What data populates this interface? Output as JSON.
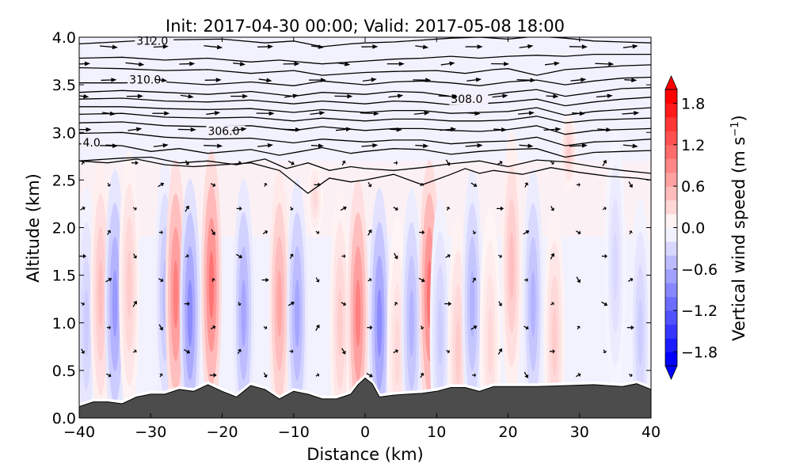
{
  "chart_data": {
    "type": "heatmap",
    "title": "Init: 2017-04-30 00:00; Valid: 2017-05-08 18:00",
    "xlabel": "Distance (km)",
    "ylabel": "Altitude (km)",
    "xlim": [
      -40,
      40
    ],
    "ylim": [
      0.0,
      4.0
    ],
    "xticks": [
      "−40",
      "−30",
      "−20",
      "−10",
      "0",
      "10",
      "20",
      "30",
      "40"
    ],
    "xtick_values": [
      -40,
      -30,
      -20,
      -10,
      0,
      10,
      20,
      30,
      40
    ],
    "yticks": [
      "0.0",
      "0.5",
      "1.0",
      "1.5",
      "2.0",
      "2.5",
      "3.0",
      "3.5",
      "4.0"
    ],
    "ytick_values": [
      0.0,
      0.5,
      1.0,
      1.5,
      2.0,
      2.5,
      3.0,
      3.5,
      4.0
    ],
    "colorbar": {
      "label": "Vertical wind speed (m s",
      "label_sup": "−1",
      "label_close": ")",
      "range": [
        -2.0,
        2.0
      ],
      "extend": "both",
      "ticks": [
        "−1.8",
        "−1.2",
        "−0.6",
        "0.0",
        "0.6",
        "1.2",
        "1.8"
      ],
      "tick_values": [
        -1.8,
        -1.2,
        -0.6,
        0.0,
        0.6,
        1.2,
        1.8
      ],
      "low_color": "#0000ff",
      "mid_color": "#ffffff",
      "high_color": "#ff0000"
    },
    "contour_labels": [
      {
        "text": "312.0",
        "x": -32,
        "y": 3.93
      },
      {
        "text": "310.0",
        "x": -33,
        "y": 3.52
      },
      {
        "text": "308.0",
        "x": 12,
        "y": 3.32
      },
      {
        "text": "306.0",
        "x": -22,
        "y": 2.98
      },
      {
        "text": "4.0",
        "x": -39.5,
        "y": 2.86
      }
    ],
    "isentropes": [
      {
        "x": [
          -40,
          -30,
          -20,
          -14,
          -10,
          -6,
          -2,
          0,
          4,
          8,
          12,
          16,
          20,
          24,
          28,
          32,
          36,
          40
        ],
        "y": [
          3.93,
          3.97,
          3.98,
          3.94,
          3.96,
          3.9,
          3.93,
          3.94,
          3.95,
          3.97,
          3.99,
          4.0,
          3.98,
          4.01,
          3.99,
          3.96,
          3.95,
          3.94
        ]
      },
      {
        "x": [
          -40,
          -34,
          -28,
          -22,
          -16,
          -12,
          -6,
          0,
          4,
          8,
          12,
          16,
          20,
          24,
          28,
          32,
          36,
          40
        ],
        "y": [
          3.78,
          3.79,
          3.76,
          3.78,
          3.74,
          3.76,
          3.72,
          3.75,
          3.77,
          3.78,
          3.8,
          3.78,
          3.8,
          3.81,
          3.8,
          3.82,
          3.82,
          3.82
        ]
      },
      {
        "x": [
          -40,
          -34,
          -28,
          -22,
          -16,
          -10,
          -6,
          0,
          4,
          10,
          14,
          18,
          20,
          24,
          28,
          32,
          36,
          40
        ],
        "y": [
          3.68,
          3.67,
          3.65,
          3.66,
          3.62,
          3.65,
          3.6,
          3.63,
          3.64,
          3.65,
          3.62,
          3.66,
          3.67,
          3.6,
          3.66,
          3.68,
          3.7,
          3.71
        ]
      },
      {
        "x": [
          -40,
          -34,
          -28,
          -22,
          -16,
          -10,
          -6,
          0,
          4,
          8,
          12,
          16,
          20,
          24,
          28,
          32,
          36,
          40
        ],
        "y": [
          3.52,
          3.52,
          3.53,
          3.5,
          3.53,
          3.49,
          3.54,
          3.5,
          3.53,
          3.54,
          3.52,
          3.49,
          3.53,
          3.55,
          3.5,
          3.54,
          3.57,
          3.58
        ]
      },
      {
        "x": [
          -40,
          -34,
          -28,
          -22,
          -16,
          -10,
          -6,
          0,
          4,
          8,
          12,
          16,
          20,
          24,
          28,
          32,
          36,
          40
        ],
        "y": [
          3.42,
          3.44,
          3.42,
          3.4,
          3.43,
          3.38,
          3.42,
          3.4,
          3.43,
          3.42,
          3.38,
          3.38,
          3.42,
          3.45,
          3.38,
          3.42,
          3.46,
          3.47
        ]
      },
      {
        "x": [
          -40,
          -34,
          -28,
          -22,
          -16,
          -10,
          -6,
          0,
          4,
          8,
          12,
          16,
          20,
          24,
          28,
          32,
          36,
          40
        ],
        "y": [
          3.35,
          3.36,
          3.33,
          3.32,
          3.34,
          3.3,
          3.33,
          3.3,
          3.33,
          3.32,
          3.29,
          3.3,
          3.32,
          3.35,
          3.28,
          3.32,
          3.35,
          3.37
        ]
      },
      {
        "x": [
          -40,
          -34,
          -28,
          -22,
          -16,
          -10,
          -6,
          0,
          4,
          8,
          12,
          16,
          20,
          24,
          28,
          32,
          36,
          40
        ],
        "y": [
          3.27,
          3.27,
          3.25,
          3.24,
          3.25,
          3.21,
          3.24,
          3.21,
          3.23,
          3.23,
          3.2,
          3.21,
          3.22,
          3.26,
          3.18,
          3.22,
          3.24,
          3.26
        ]
      },
      {
        "x": [
          -40,
          -34,
          -28,
          -22,
          -16,
          -10,
          -6,
          0,
          4,
          8,
          12,
          16,
          20,
          24,
          28,
          32,
          36,
          40
        ],
        "y": [
          3.19,
          3.2,
          3.16,
          3.15,
          3.16,
          3.12,
          3.15,
          3.12,
          3.14,
          3.14,
          3.12,
          3.12,
          3.13,
          3.17,
          3.1,
          3.13,
          3.14,
          3.15
        ]
      },
      {
        "x": [
          -40,
          -34,
          -28,
          -22,
          -16,
          -10,
          -6,
          0,
          4,
          8,
          12,
          16,
          20,
          24,
          28,
          32,
          36,
          40
        ],
        "y": [
          3.1,
          3.11,
          3.07,
          3.06,
          3.07,
          3.02,
          3.06,
          3.02,
          3.04,
          3.04,
          3.02,
          3.01,
          3.03,
          3.07,
          2.98,
          3.02,
          3.03,
          3.04
        ]
      },
      {
        "x": [
          -40,
          -34,
          -28,
          -22,
          -16,
          -10,
          -6,
          0,
          4,
          8,
          12,
          16,
          20,
          24,
          28,
          32,
          36,
          40
        ],
        "y": [
          2.99,
          3.0,
          2.95,
          2.93,
          2.94,
          2.89,
          2.93,
          2.9,
          2.92,
          2.92,
          2.88,
          2.9,
          2.91,
          2.95,
          2.86,
          2.9,
          2.91,
          2.93
        ]
      },
      {
        "x": [
          -40,
          -34,
          -30,
          -26,
          -22,
          -16,
          -12,
          -9,
          -6,
          -2,
          0,
          4,
          8,
          12,
          16,
          20,
          24,
          28,
          32,
          36,
          40
        ],
        "y": [
          2.88,
          2.86,
          2.8,
          2.83,
          2.78,
          2.82,
          2.76,
          2.8,
          2.84,
          2.78,
          2.8,
          2.83,
          2.82,
          2.77,
          2.8,
          2.82,
          2.83,
          2.74,
          2.79,
          2.8,
          2.81
        ]
      },
      {
        "x": [
          -40,
          -34,
          -30,
          -26,
          -22,
          -18,
          -14,
          -11,
          -8,
          -5,
          -2,
          0,
          4,
          8,
          12,
          16,
          20,
          24,
          28,
          32,
          36,
          40
        ],
        "y": [
          2.7,
          2.73,
          2.74,
          2.68,
          2.7,
          2.66,
          2.72,
          2.62,
          2.68,
          2.6,
          2.64,
          2.62,
          2.6,
          2.63,
          2.67,
          2.7,
          2.64,
          2.71,
          2.69,
          2.64,
          2.6,
          2.57
        ]
      },
      {
        "x": [
          -40,
          -36,
          -32,
          -28,
          -24,
          -20,
          -16,
          -12,
          -10,
          -8,
          -5,
          -2,
          0,
          4,
          8,
          12,
          14,
          16,
          18,
          22,
          26,
          30,
          34,
          38,
          40
        ],
        "y": [
          2.7,
          2.68,
          2.72,
          2.66,
          2.64,
          2.66,
          2.68,
          2.6,
          2.48,
          2.36,
          2.52,
          2.48,
          2.5,
          2.56,
          2.45,
          2.56,
          2.62,
          2.57,
          2.6,
          2.56,
          2.63,
          2.58,
          2.54,
          2.52,
          2.5
        ]
      }
    ],
    "terrain": {
      "color": "#4c4c4c",
      "x": [
        -40,
        -38,
        -36,
        -34,
        -32,
        -30,
        -28,
        -26,
        -24,
        -22,
        -20,
        -18,
        -16,
        -14,
        -12,
        -10,
        -8,
        -6,
        -4,
        -2,
        -1,
        0,
        1,
        2,
        4,
        6,
        8,
        10,
        12,
        14,
        16,
        18,
        20,
        24,
        28,
        32,
        36,
        38,
        40
      ],
      "y": [
        0.12,
        0.17,
        0.17,
        0.15,
        0.22,
        0.25,
        0.25,
        0.3,
        0.28,
        0.35,
        0.28,
        0.22,
        0.34,
        0.3,
        0.2,
        0.28,
        0.25,
        0.2,
        0.2,
        0.25,
        0.35,
        0.42,
        0.36,
        0.22,
        0.24,
        0.25,
        0.26,
        0.28,
        0.32,
        0.32,
        0.28,
        0.33,
        0.33,
        0.33,
        0.34,
        0.35,
        0.33,
        0.36,
        0.3
      ]
    },
    "w_cells": [
      {
        "x": -39,
        "y": 1.0,
        "w": -0.4
      },
      {
        "x": -37,
        "y": 1.3,
        "w": 0.5
      },
      {
        "x": -35,
        "y": 1.2,
        "w": -0.8
      },
      {
        "x": -33,
        "y": 1.4,
        "w": 0.4
      },
      {
        "x": -28,
        "y": 1.3,
        "w": -0.5
      },
      {
        "x": -26.5,
        "y": 1.3,
        "w": 1.0
      },
      {
        "x": -24.5,
        "y": 1.1,
        "w": -0.9
      },
      {
        "x": -21.5,
        "y": 1.4,
        "w": 1.1
      },
      {
        "x": -17,
        "y": 1.1,
        "w": -0.7
      },
      {
        "x": -12,
        "y": 1.2,
        "w": 0.7
      },
      {
        "x": -9.5,
        "y": 1.1,
        "w": -0.7
      },
      {
        "x": -7,
        "y": 2.3,
        "w": 0.3
      },
      {
        "x": -3.5,
        "y": 1.0,
        "w": 0.4
      },
      {
        "x": -1,
        "y": 1.1,
        "w": 1.0
      },
      {
        "x": 2,
        "y": 1.0,
        "w": -0.9
      },
      {
        "x": 4.5,
        "y": 0.7,
        "w": 0.3
      },
      {
        "x": 6.5,
        "y": 1.0,
        "w": -0.6
      },
      {
        "x": 9,
        "y": 1.3,
        "w": 1.1
      },
      {
        "x": 10.5,
        "y": 0.9,
        "w": -0.4
      },
      {
        "x": 13,
        "y": 0.7,
        "w": 0.4
      },
      {
        "x": 15,
        "y": 1.2,
        "w": -0.6
      },
      {
        "x": 17.5,
        "y": 0.8,
        "w": 0.3
      },
      {
        "x": 20.5,
        "y": 1.6,
        "w": 0.5
      },
      {
        "x": 23.5,
        "y": 1.2,
        "w": -0.6
      },
      {
        "x": 26.5,
        "y": 0.8,
        "w": 0.4
      },
      {
        "x": 28.5,
        "y": 2.8,
        "w": 0.4
      },
      {
        "x": 35,
        "y": 1.6,
        "w": -0.3
      },
      {
        "x": 38.5,
        "y": 0.9,
        "w": -0.4
      }
    ]
  }
}
